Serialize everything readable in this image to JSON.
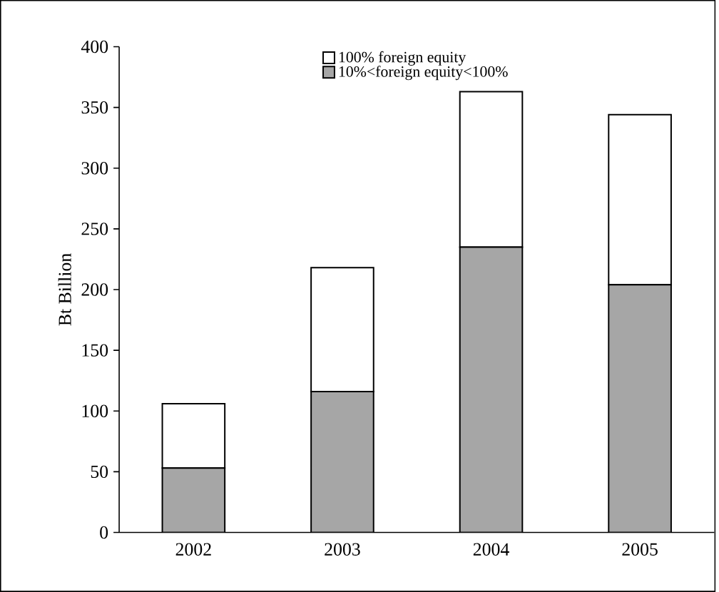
{
  "chart_data": {
    "type": "bar",
    "stacked": true,
    "ylabel": "Bt Billion",
    "categories": [
      "2002",
      "2003",
      "2004",
      "2005"
    ],
    "series": [
      {
        "name": "10%<foreign equity<100%",
        "color": "#a6a6a6",
        "values": [
          53,
          116,
          235,
          204
        ]
      },
      {
        "name": "100% foreign equity",
        "color": "#ffffff",
        "values": [
          53,
          102,
          128,
          140
        ]
      }
    ],
    "ylim": [
      0,
      400
    ],
    "yticks": [
      0,
      50,
      100,
      150,
      200,
      250,
      300,
      350,
      400
    ],
    "grid": false,
    "legend": "top"
  }
}
